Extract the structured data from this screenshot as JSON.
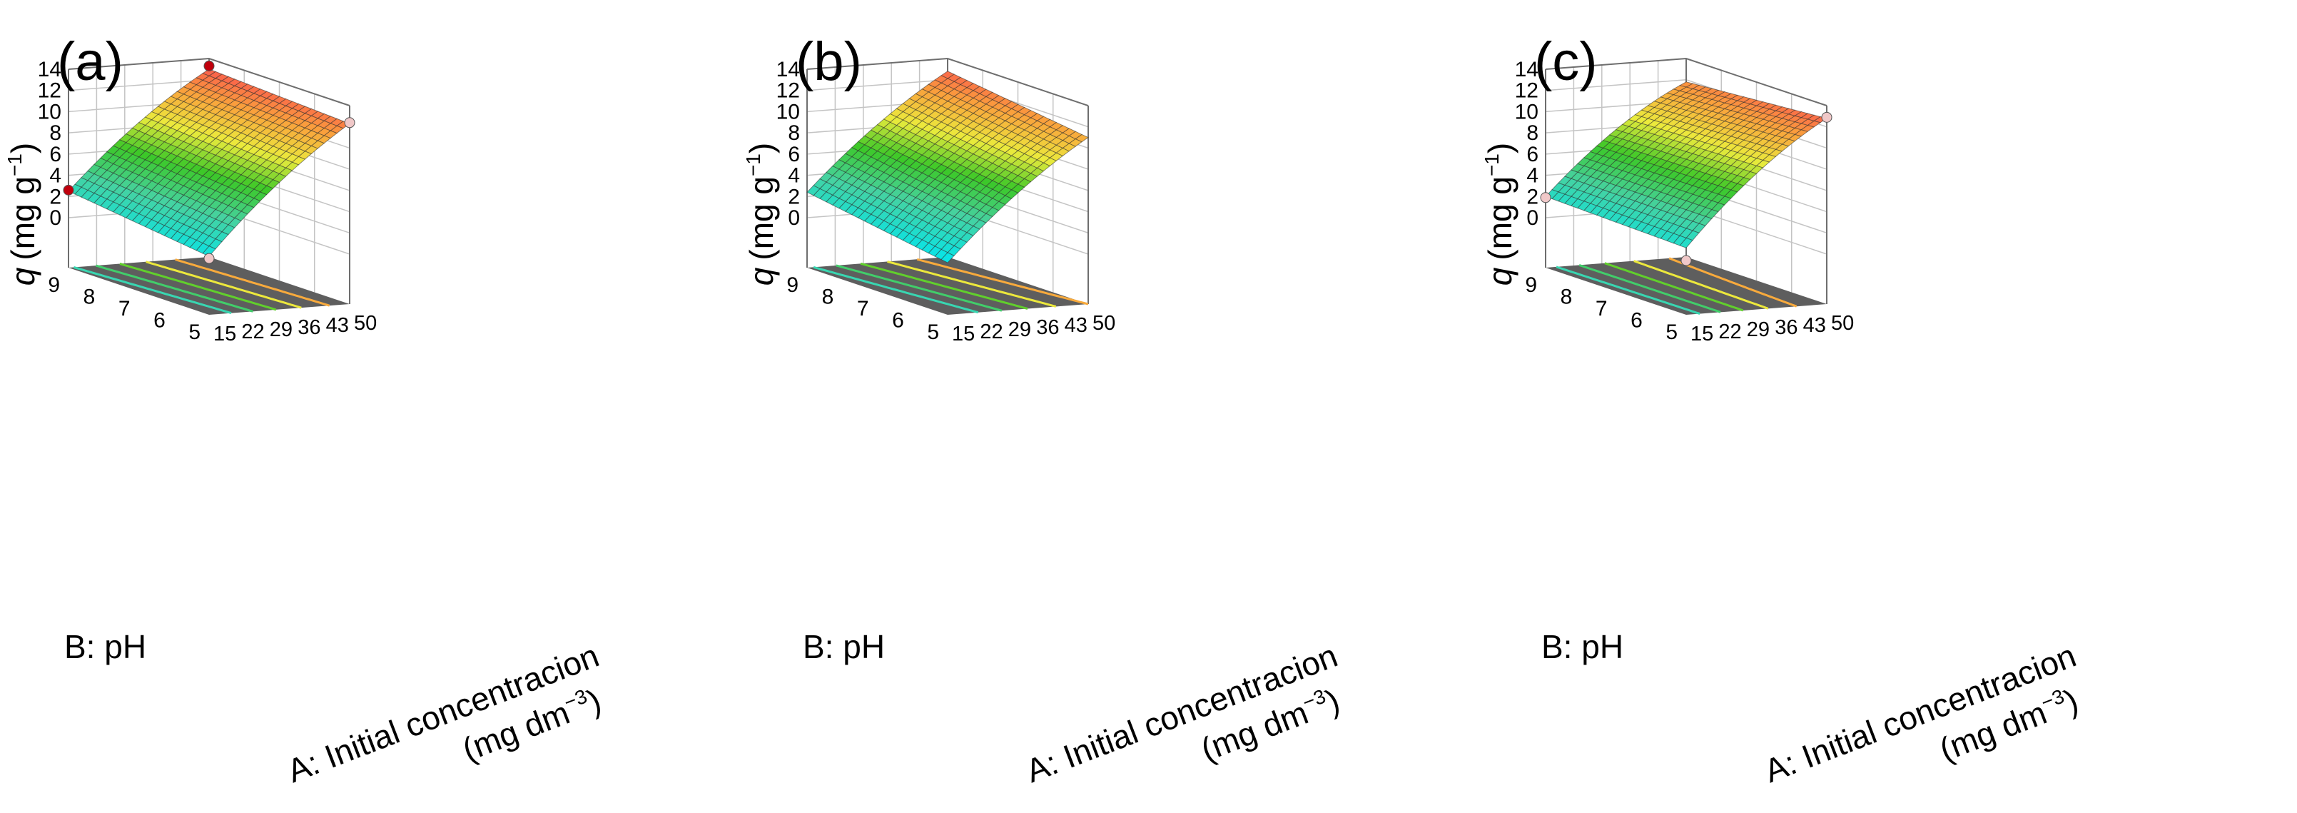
{
  "chart_data": [
    {
      "type": "surface",
      "panel_label": "(a)",
      "zlabel": "q (mg g−1)",
      "zlabel_q": "q",
      "zlabel_unit": "(mg g",
      "zlabel_exp": "−1",
      "zlabel_close": ")",
      "xlabel": "A: Initial concentracion",
      "xlabel2_base": "(mg dm",
      "xlabel2_exp": "−3",
      "xlabel2_close": ")",
      "ylabel": "B: pH",
      "x_ticks": [
        "15",
        "22",
        "29",
        "36",
        "43",
        "50"
      ],
      "y_ticks": [
        "5",
        "6",
        "7",
        "8",
        "9"
      ],
      "z_ticks": [
        "0",
        "2",
        "4",
        "6",
        "8",
        "10",
        "12",
        "14"
      ],
      "xlim": [
        15,
        50
      ],
      "ylim": [
        5,
        9
      ],
      "zlim": [
        0,
        14
      ],
      "surface_corners": {
        "x15_pH9": 2.5,
        "x50_pH9": 13.0,
        "x15_pH5": 0.8,
        "x50_pH5": 12.3
      },
      "curvature": 3.2,
      "design_points": [
        {
          "x": 15,
          "y": 9,
          "z": 2.6,
          "color": "#c0000d"
        },
        {
          "x": 15,
          "y": 5,
          "z": 0.6,
          "color": "#f0c8c8"
        },
        {
          "x": 50,
          "y": 9,
          "z": 13.3,
          "color": "#c0000d"
        },
        {
          "x": 50,
          "y": 5,
          "z": 12.4,
          "color": "#f0c8c8"
        }
      ],
      "contour_levels": [
        3,
        5,
        7,
        9,
        11
      ]
    },
    {
      "type": "surface",
      "panel_label": "(b)",
      "zlabel": "q (mg g−1)",
      "zlabel_q": "q",
      "zlabel_unit": "(mg g",
      "zlabel_exp": "−1",
      "zlabel_close": ")",
      "xlabel": "A: Initial concentracion",
      "xlabel2_base": "(mg dm",
      "xlabel2_exp": "−3",
      "xlabel2_close": ")",
      "ylabel": "B: pH",
      "x_ticks": [
        "15",
        "22",
        "29",
        "36",
        "43",
        "50"
      ],
      "y_ticks": [
        "5",
        "6",
        "7",
        "8",
        "9"
      ],
      "z_ticks": [
        "0",
        "2",
        "4",
        "6",
        "8",
        "10",
        "12",
        "14"
      ],
      "xlim": [
        15,
        50
      ],
      "ylim": [
        5,
        9
      ],
      "zlim": [
        0,
        14
      ],
      "surface_corners": {
        "x15_pH9": 2.4,
        "x50_pH9": 12.8,
        "x15_pH5": 0.2,
        "x50_pH5": 11.0
      },
      "curvature": 3.0,
      "design_points": [],
      "contour_levels": [
        3,
        5,
        7,
        9,
        11
      ]
    },
    {
      "type": "surface",
      "panel_label": "(c)",
      "zlabel": "q (mg g−1)",
      "zlabel_q": "q",
      "zlabel_unit": "(mg g",
      "zlabel_exp": "−1",
      "zlabel_close": ")",
      "xlabel": "A: Initial concentracion",
      "xlabel2_base": "(mg dm",
      "xlabel2_exp": "−3",
      "xlabel2_close": ")",
      "ylabel": "B: pH",
      "x_ticks": [
        "15",
        "22",
        "29",
        "36",
        "43",
        "50"
      ],
      "y_ticks": [
        "5",
        "6",
        "7",
        "8",
        "9"
      ],
      "z_ticks": [
        "0",
        "2",
        "4",
        "6",
        "8",
        "10",
        "12",
        "14"
      ],
      "xlim": [
        15,
        50
      ],
      "ylim": [
        5,
        9
      ],
      "zlim": [
        0,
        14
      ],
      "surface_corners": {
        "x15_pH9": 2.0,
        "x50_pH9": 11.8,
        "x15_pH5": 1.6,
        "x50_pH5": 12.8
      },
      "curvature": 4.0,
      "design_points": [
        {
          "x": 15,
          "y": 9,
          "z": 1.9,
          "color": "#f0c8c8"
        },
        {
          "x": 15,
          "y": 5,
          "z": 0.4,
          "color": "#f0c8c8"
        },
        {
          "x": 50,
          "y": 5,
          "z": 12.9,
          "color": "#f0c8c8"
        }
      ],
      "contour_levels": [
        3,
        5,
        7,
        9,
        11
      ]
    }
  ],
  "colors": {
    "floor": "#5e5e5e",
    "grid": "#c4c4c4",
    "frame": "#6e6e6e",
    "mesh": "#2a2a2a"
  }
}
